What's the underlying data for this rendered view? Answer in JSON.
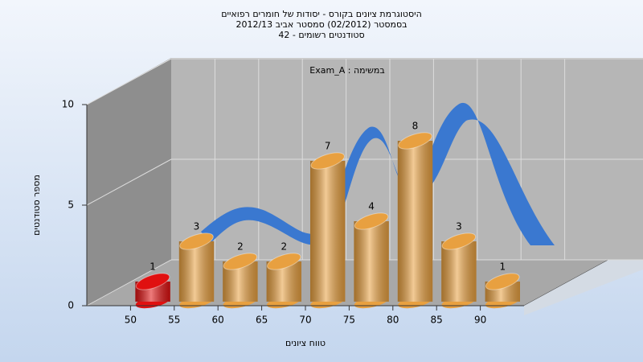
{
  "chart_data": {
    "type": "histogram",
    "title": [
      "היסטוגרמת ציונים בקורס - יסודות של חומרים רפואיים",
      "בסמסטר  (02/2012)  סמסטר אביב 2012/13",
      "סטודנטים רשומים - 42"
    ],
    "annotation": "במשימה : Exam_A",
    "x_label": "טווח ציונים",
    "y_label": "מספר סטודנטים",
    "bins": [
      50,
      55,
      60,
      65,
      70,
      75,
      80,
      85,
      90,
      95
    ],
    "values": [
      1,
      3,
      2,
      2,
      7,
      4,
      8,
      3,
      1
    ],
    "colors": [
      "#e01010",
      "#e8a040",
      "#e8a040",
      "#e8a040",
      "#e8a040",
      "#e8a040",
      "#e8a040",
      "#e8a040",
      "#e8a040"
    ],
    "xlim": [
      45,
      95
    ],
    "xticks": [
      50,
      55,
      60,
      65,
      70,
      75,
      80,
      85,
      90
    ],
    "ylim": [
      0,
      10
    ],
    "yticks": [
      0,
      5,
      10
    ],
    "grid": true
  }
}
